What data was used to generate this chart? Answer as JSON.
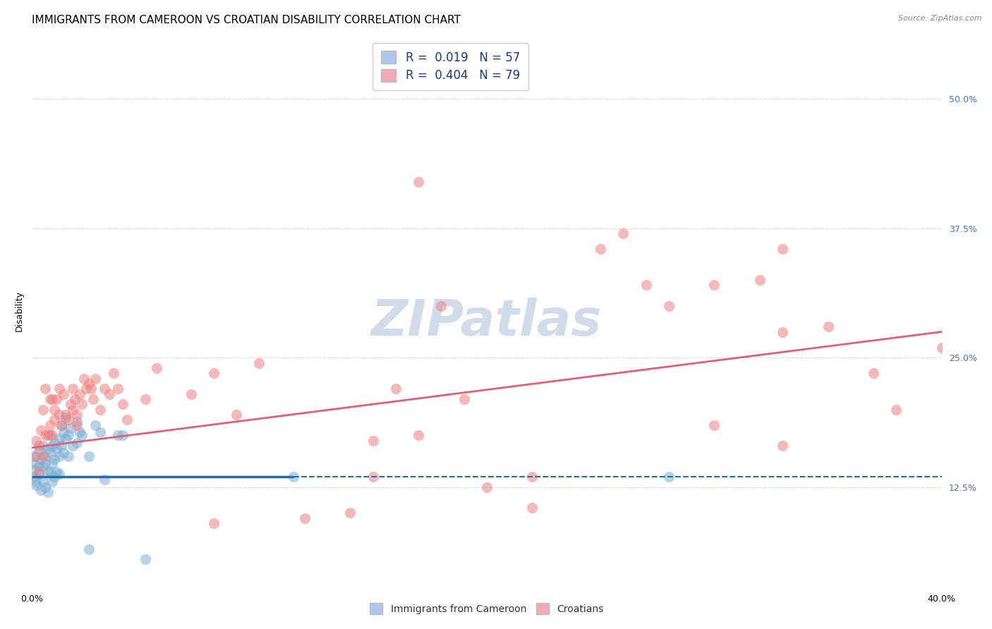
{
  "title": "IMMIGRANTS FROM CAMEROON VS CROATIAN DISABILITY CORRELATION CHART",
  "source": "Source: ZipAtlas.com",
  "ylabel": "Disability",
  "y_ticks": [
    0.125,
    0.25,
    0.375,
    0.5
  ],
  "y_tick_labels": [
    "12.5%",
    "25.0%",
    "37.5%",
    "50.0%"
  ],
  "x_range": [
    0.0,
    0.4
  ],
  "y_range": [
    0.03,
    0.56
  ],
  "watermark_text": "ZIPatlas",
  "blue_scatter": [
    [
      0.001,
      0.148
    ],
    [
      0.001,
      0.142
    ],
    [
      0.001,
      0.135
    ],
    [
      0.002,
      0.155
    ],
    [
      0.002,
      0.13
    ],
    [
      0.002,
      0.127
    ],
    [
      0.003,
      0.16
    ],
    [
      0.003,
      0.145
    ],
    [
      0.003,
      0.138
    ],
    [
      0.004,
      0.152
    ],
    [
      0.004,
      0.122
    ],
    [
      0.005,
      0.165
    ],
    [
      0.005,
      0.145
    ],
    [
      0.005,
      0.13
    ],
    [
      0.006,
      0.155
    ],
    [
      0.006,
      0.148
    ],
    [
      0.006,
      0.125
    ],
    [
      0.007,
      0.162
    ],
    [
      0.007,
      0.14
    ],
    [
      0.007,
      0.12
    ],
    [
      0.008,
      0.175
    ],
    [
      0.008,
      0.158
    ],
    [
      0.008,
      0.14
    ],
    [
      0.009,
      0.165
    ],
    [
      0.009,
      0.148
    ],
    [
      0.009,
      0.13
    ],
    [
      0.01,
      0.168
    ],
    [
      0.01,
      0.152
    ],
    [
      0.01,
      0.135
    ],
    [
      0.011,
      0.162
    ],
    [
      0.011,
      0.14
    ],
    [
      0.012,
      0.172
    ],
    [
      0.012,
      0.155
    ],
    [
      0.012,
      0.138
    ],
    [
      0.013,
      0.185
    ],
    [
      0.013,
      0.165
    ],
    [
      0.014,
      0.178
    ],
    [
      0.014,
      0.158
    ],
    [
      0.015,
      0.192
    ],
    [
      0.015,
      0.172
    ],
    [
      0.016,
      0.175
    ],
    [
      0.016,
      0.155
    ],
    [
      0.017,
      0.182
    ],
    [
      0.018,
      0.165
    ],
    [
      0.02,
      0.188
    ],
    [
      0.02,
      0.168
    ],
    [
      0.021,
      0.178
    ],
    [
      0.022,
      0.175
    ],
    [
      0.025,
      0.155
    ],
    [
      0.025,
      0.065
    ],
    [
      0.028,
      0.185
    ],
    [
      0.03,
      0.178
    ],
    [
      0.032,
      0.132
    ],
    [
      0.038,
      0.175
    ],
    [
      0.04,
      0.175
    ],
    [
      0.05,
      0.055
    ],
    [
      0.115,
      0.135
    ],
    [
      0.28,
      0.135
    ]
  ],
  "pink_scatter": [
    [
      0.001,
      0.155
    ],
    [
      0.002,
      0.17
    ],
    [
      0.003,
      0.14
    ],
    [
      0.003,
      0.165
    ],
    [
      0.004,
      0.18
    ],
    [
      0.005,
      0.2
    ],
    [
      0.005,
      0.155
    ],
    [
      0.006,
      0.175
    ],
    [
      0.006,
      0.22
    ],
    [
      0.007,
      0.175
    ],
    [
      0.008,
      0.185
    ],
    [
      0.008,
      0.21
    ],
    [
      0.009,
      0.175
    ],
    [
      0.009,
      0.21
    ],
    [
      0.01,
      0.2
    ],
    [
      0.01,
      0.19
    ],
    [
      0.011,
      0.21
    ],
    [
      0.012,
      0.195
    ],
    [
      0.012,
      0.22
    ],
    [
      0.013,
      0.185
    ],
    [
      0.014,
      0.215
    ],
    [
      0.015,
      0.195
    ],
    [
      0.016,
      0.19
    ],
    [
      0.017,
      0.205
    ],
    [
      0.018,
      0.2
    ],
    [
      0.018,
      0.22
    ],
    [
      0.019,
      0.21
    ],
    [
      0.02,
      0.195
    ],
    [
      0.02,
      0.185
    ],
    [
      0.021,
      0.215
    ],
    [
      0.022,
      0.205
    ],
    [
      0.023,
      0.23
    ],
    [
      0.024,
      0.22
    ],
    [
      0.025,
      0.225
    ],
    [
      0.026,
      0.22
    ],
    [
      0.027,
      0.21
    ],
    [
      0.028,
      0.23
    ],
    [
      0.03,
      0.2
    ],
    [
      0.032,
      0.22
    ],
    [
      0.034,
      0.215
    ],
    [
      0.036,
      0.235
    ],
    [
      0.038,
      0.22
    ],
    [
      0.04,
      0.205
    ],
    [
      0.042,
      0.19
    ],
    [
      0.05,
      0.21
    ],
    [
      0.055,
      0.24
    ],
    [
      0.07,
      0.215
    ],
    [
      0.08,
      0.235
    ],
    [
      0.08,
      0.09
    ],
    [
      0.09,
      0.195
    ],
    [
      0.1,
      0.245
    ],
    [
      0.12,
      0.095
    ],
    [
      0.14,
      0.1
    ],
    [
      0.15,
      0.135
    ],
    [
      0.15,
      0.17
    ],
    [
      0.16,
      0.22
    ],
    [
      0.17,
      0.175
    ],
    [
      0.17,
      0.42
    ],
    [
      0.18,
      0.3
    ],
    [
      0.19,
      0.21
    ],
    [
      0.2,
      0.125
    ],
    [
      0.22,
      0.105
    ],
    [
      0.22,
      0.135
    ],
    [
      0.25,
      0.355
    ],
    [
      0.26,
      0.37
    ],
    [
      0.27,
      0.32
    ],
    [
      0.28,
      0.3
    ],
    [
      0.3,
      0.32
    ],
    [
      0.3,
      0.185
    ],
    [
      0.32,
      0.325
    ],
    [
      0.33,
      0.165
    ],
    [
      0.33,
      0.355
    ],
    [
      0.33,
      0.275
    ],
    [
      0.35,
      0.28
    ],
    [
      0.37,
      0.235
    ],
    [
      0.38,
      0.2
    ],
    [
      0.4,
      0.26
    ]
  ],
  "blue_line_solid": {
    "x": [
      0.0,
      0.115
    ],
    "y": [
      0.135,
      0.135
    ]
  },
  "blue_line_dashed": {
    "x": [
      0.115,
      0.4
    ],
    "y": [
      0.135,
      0.135
    ]
  },
  "pink_line": {
    "x": [
      0.0,
      0.4
    ],
    "y": [
      0.163,
      0.275
    ]
  },
  "scatter_size": 120,
  "scatter_alpha": 0.55,
  "blue_color": "#7bafd4",
  "pink_color": "#f08080",
  "blue_line_color": "#1f6fb5",
  "pink_line_color": "#e0607a",
  "grid_color": "#cccccc",
  "bg_color": "#ffffff",
  "title_fontsize": 11,
  "axis_label_fontsize": 9,
  "tick_fontsize": 9,
  "watermark_fontsize": 52,
  "watermark_color": "#cdd8e8",
  "right_tick_color": "#4472c4",
  "legend_blue_label": "R =  0.019   N = 57",
  "legend_pink_label": "R =  0.404   N = 79",
  "legend_blue_color": "#aec6f0",
  "legend_pink_color": "#f5a8b8"
}
